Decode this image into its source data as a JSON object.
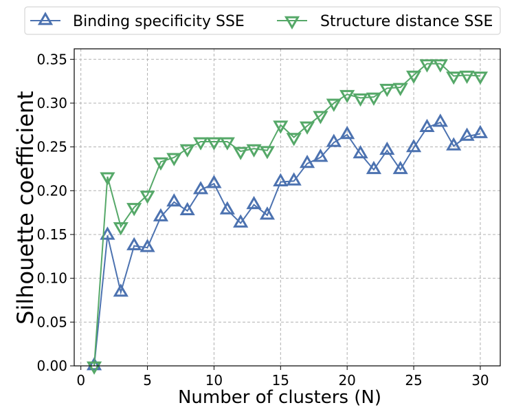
{
  "chart_data": {
    "type": "line",
    "title": "",
    "xlabel": "Number of clusters (N)",
    "ylabel": "Silhouette coefficient",
    "xlim": [
      -0.5,
      31.5
    ],
    "ylim": [
      0.0,
      0.362
    ],
    "xticks": [
      0,
      5,
      10,
      15,
      20,
      25,
      30
    ],
    "xtick_labels": [
      "0",
      "5",
      "10",
      "15",
      "20",
      "25",
      "30"
    ],
    "yticks": [
      0.0,
      0.05,
      0.1,
      0.15,
      0.2,
      0.25,
      0.3,
      0.35
    ],
    "ytick_labels": [
      "0.00",
      "0.05",
      "0.10",
      "0.15",
      "0.20",
      "0.25",
      "0.30",
      "0.35"
    ],
    "grid": true,
    "legend_position": "top-center, outside plot",
    "x": [
      1,
      2,
      3,
      4,
      5,
      6,
      7,
      8,
      9,
      10,
      11,
      12,
      13,
      14,
      15,
      16,
      17,
      18,
      19,
      20,
      21,
      22,
      23,
      24,
      25,
      26,
      27,
      28,
      29,
      30
    ],
    "series": [
      {
        "name": "Binding specificity SSE",
        "color": "#4c72b0",
        "marker": "triangle-up",
        "values": [
          0.0,
          0.149,
          0.084,
          0.137,
          0.135,
          0.17,
          0.187,
          0.177,
          0.201,
          0.208,
          0.178,
          0.163,
          0.184,
          0.172,
          0.21,
          0.211,
          0.231,
          0.238,
          0.255,
          0.264,
          0.242,
          0.224,
          0.246,
          0.224,
          0.249,
          0.272,
          0.278,
          0.251,
          0.262,
          0.265
        ]
      },
      {
        "name": "Structure distance SSE",
        "color": "#55a868",
        "marker": "triangle-down",
        "values": [
          0.0,
          0.216,
          0.159,
          0.181,
          0.195,
          0.233,
          0.238,
          0.248,
          0.256,
          0.256,
          0.256,
          0.245,
          0.248,
          0.246,
          0.275,
          0.261,
          0.274,
          0.286,
          0.3,
          0.31,
          0.306,
          0.307,
          0.317,
          0.318,
          0.332,
          0.345,
          0.345,
          0.331,
          0.332,
          0.331
        ]
      }
    ]
  }
}
